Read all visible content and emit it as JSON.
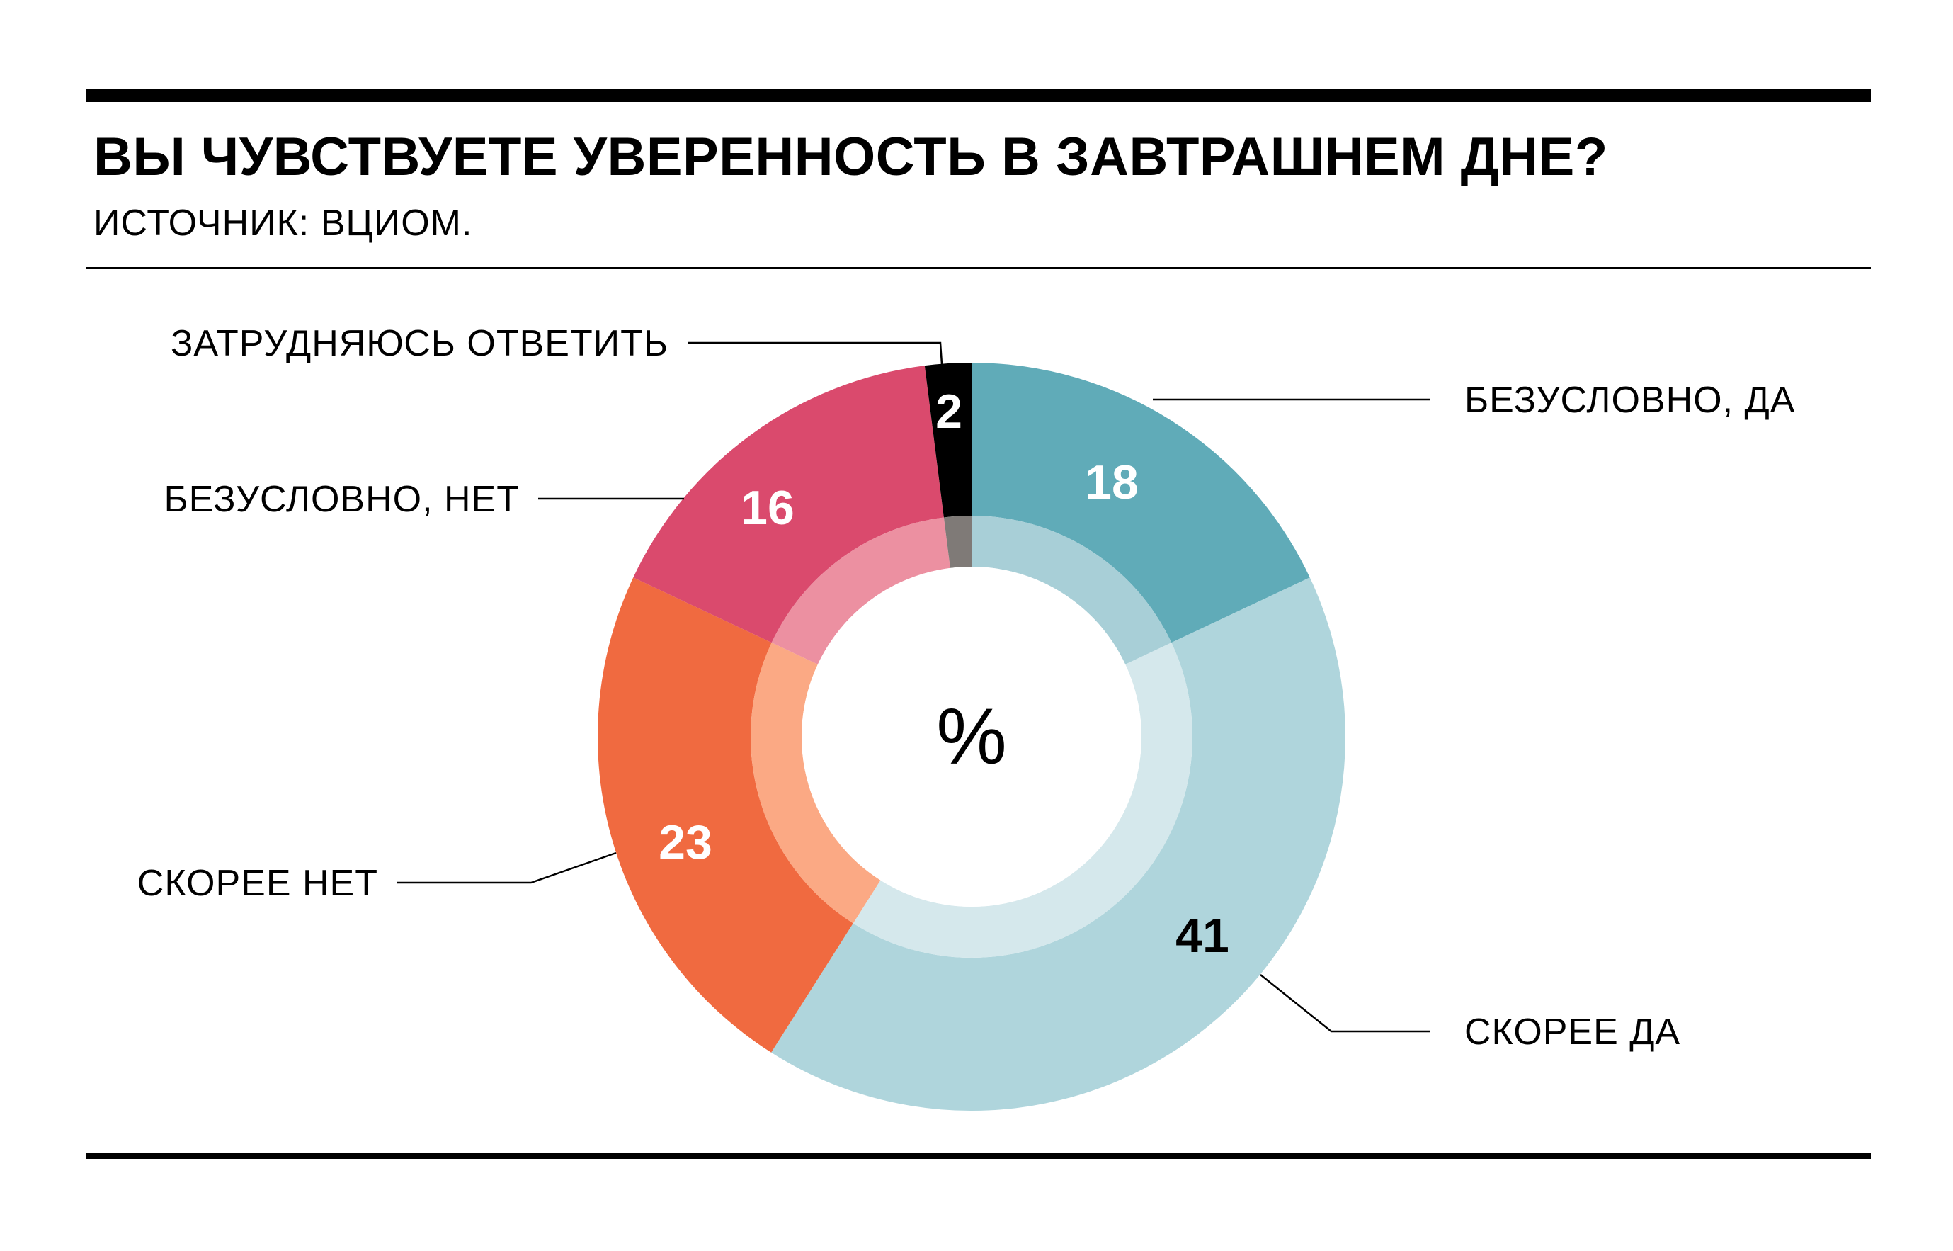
{
  "title": "ВЫ ЧУВСТВУЕТЕ УВЕРЕННОСТЬ В ЗАВТРАШНЕМ ДНЕ?",
  "source": "ИСТОЧНИК: ВЦИОМ.",
  "chart_data": {
    "type": "pie",
    "variant": "donut",
    "center_label": "%",
    "slices": [
      {
        "label": "БЕЗУСЛОВНО, ДА",
        "value": 18,
        "color": "#60ABB8",
        "inner_color": "#A8CFD7",
        "text_color": "#ffffff"
      },
      {
        "label": "СКОРЕЕ ДА",
        "value": 41,
        "color": "#AFD5DC",
        "inner_color": "#D5E8EC",
        "text_color": "#000000"
      },
      {
        "label": "СКОРЕЕ НЕТ",
        "value": 23,
        "color": "#F06A40",
        "inner_color": "#FBA984",
        "text_color": "#ffffff"
      },
      {
        "label": "БЕЗУСЛОВНО, НЕТ",
        "value": 16,
        "color": "#DA4A6D",
        "inner_color": "#EC90A1",
        "text_color": "#ffffff"
      },
      {
        "label": "ЗАТРУДНЯЮСЬ ОТВЕТИТЬ",
        "value": 2,
        "color": "#000000",
        "inner_color": "#7F7A77",
        "text_color": "#ffffff"
      }
    ]
  }
}
